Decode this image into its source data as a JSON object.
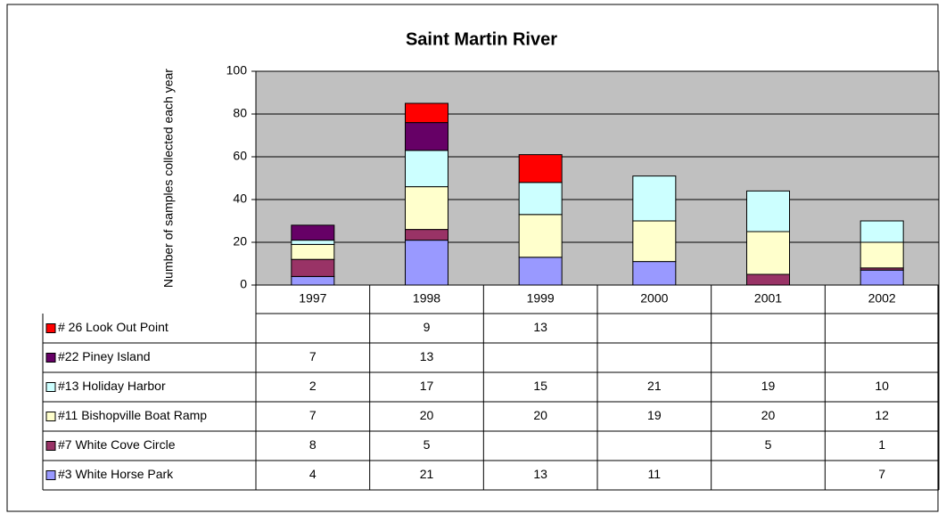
{
  "chart_data": {
    "type": "stacked_bar",
    "title": "Saint Martin River",
    "y_label": "Number of samples collected each year",
    "categories": [
      "1997",
      "1998",
      "1999",
      "2000",
      "2001",
      "2002"
    ],
    "series": [
      {
        "name": "#3 White Horse Park",
        "color": "#9999ff",
        "values": [
          4,
          21,
          13,
          11,
          null,
          7
        ]
      },
      {
        "name": "#7 White Cove Circle",
        "color": "#993366",
        "values": [
          8,
          5,
          null,
          null,
          5,
          1
        ]
      },
      {
        "name": "#11 Bishopville Boat Ramp",
        "color": "#ffffcc",
        "values": [
          7,
          20,
          20,
          19,
          20,
          12
        ]
      },
      {
        "name": "#13 Holiday Harbor",
        "color": "#ccffff",
        "values": [
          2,
          17,
          15,
          21,
          19,
          10
        ]
      },
      {
        "name": "#22 Piney Island",
        "color": "#660066",
        "values": [
          7,
          13,
          null,
          null,
          null,
          null
        ]
      },
      {
        "name": "# 26 Look Out Point",
        "color": "#ff0000",
        "values": [
          null,
          9,
          13,
          null,
          null,
          null
        ]
      }
    ],
    "ylim": [
      0,
      100
    ],
    "yticks": [
      0,
      20,
      40,
      60,
      80,
      100
    ],
    "grid": true,
    "plot_background": "#c0c0c0"
  }
}
